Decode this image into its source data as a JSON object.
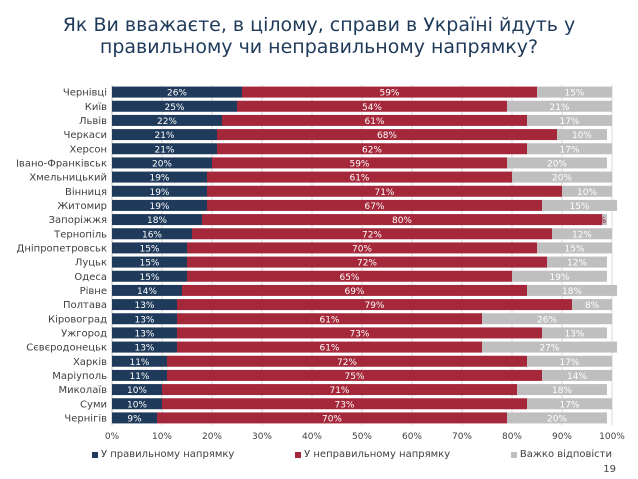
{
  "title_line1": "Як Ви вважаєте, в цілому, справи в Україні йдуть у",
  "title_line2": "правильному чи неправильному напрямку?",
  "page_number": "19",
  "colors": {
    "positive": "#1f3a5a",
    "negative": "#a4273a",
    "hard": "#bfbfbf",
    "grid": "#d9d9d9"
  },
  "chart_data": {
    "type": "bar",
    "orientation": "horizontal",
    "stacked": true,
    "percent_axis": true,
    "categories": [
      "Чернівці",
      "Київ",
      "Львів",
      "Черкаси",
      "Херсон",
      "Івано-Франківськ",
      "Хмельницький",
      "Вінниця",
      "Житомир",
      "Запоріжжя",
      "Тернопіль",
      "Дніпропетровськ",
      "Луцьк",
      "Одеса",
      "Рівне",
      "Полтава",
      "Кіровоград",
      "Ужгород",
      "Сєвєродонецьк",
      "Харків",
      "Маріуполь",
      "Миколаїв",
      "Суми",
      "Чернігів"
    ],
    "series": [
      {
        "name": "У правильному напрямку",
        "values": [
          26,
          25,
          22,
          21,
          21,
          20,
          19,
          19,
          19,
          18,
          16,
          15,
          15,
          15,
          14,
          13,
          13,
          13,
          13,
          11,
          11,
          10,
          10,
          9
        ]
      },
      {
        "name": "У неправильному напрямку",
        "values": [
          59,
          54,
          61,
          68,
          62,
          59,
          61,
          71,
          67,
          80,
          72,
          70,
          72,
          65,
          69,
          79,
          61,
          73,
          61,
          72,
          75,
          71,
          73,
          70
        ]
      },
      {
        "name": "Важко відповісти",
        "values": [
          15,
          21,
          17,
          10,
          17,
          20,
          20,
          10,
          15,
          1,
          12,
          15,
          12,
          19,
          18,
          8,
          26,
          13,
          27,
          17,
          14,
          18,
          17,
          20
        ]
      }
    ],
    "x_ticks": [
      "0%",
      "10%",
      "20%",
      "30%",
      "40%",
      "50%",
      "60%",
      "70%",
      "80%",
      "90%",
      "100%"
    ],
    "xlim": [
      0,
      100
    ],
    "grid": true,
    "legend_position": "bottom"
  }
}
